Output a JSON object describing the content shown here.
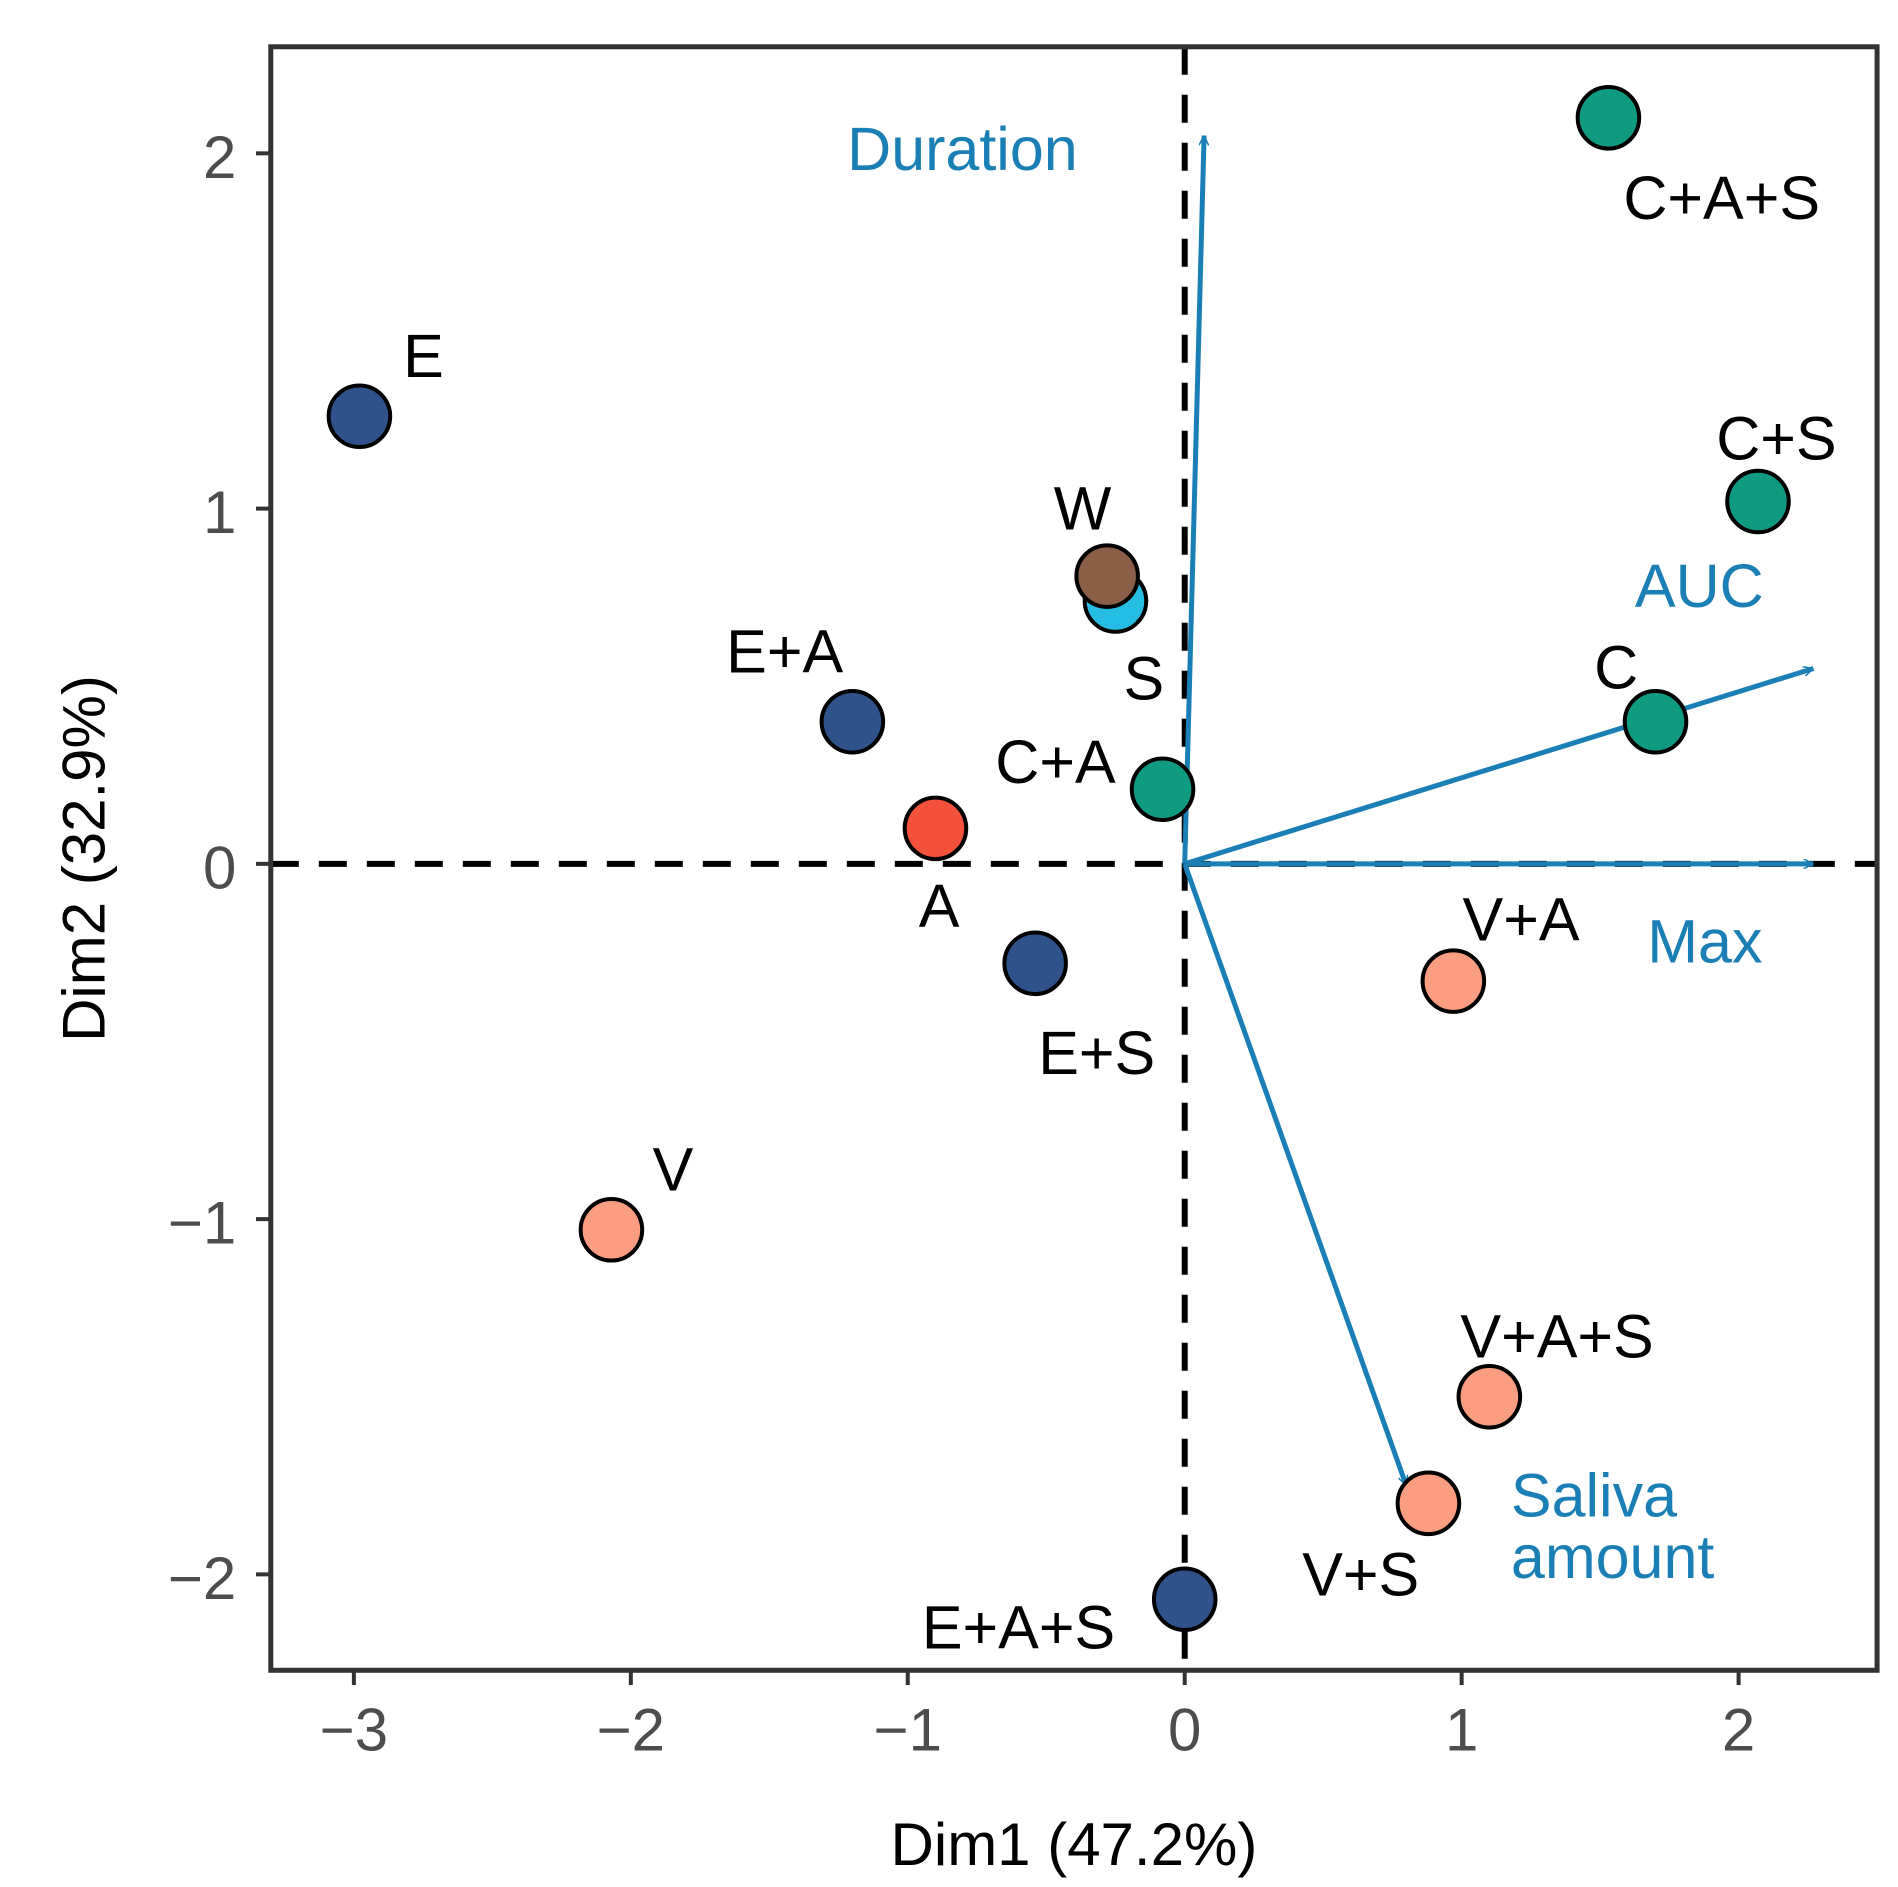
{
  "chart_data": {
    "type": "scatter",
    "subtype": "PCA biplot",
    "title": "",
    "xlabel": "Dim1 (47.2%)",
    "ylabel": "Dim2 (32.9%)",
    "xlim": [
      -3.3,
      2.5
    ],
    "ylim": [
      -2.27,
      2.3
    ],
    "xticks": [
      -3,
      -2,
      -1,
      0,
      1,
      2
    ],
    "yticks": [
      -2,
      -1,
      0,
      1,
      2
    ],
    "xtick_labels": [
      "−3",
      "−2",
      "−1",
      "0",
      "1",
      "2"
    ],
    "ytick_labels": [
      "−2",
      "−1",
      "0",
      "1",
      "2"
    ],
    "grid": false,
    "reference_lines": {
      "x": 0,
      "y": 0,
      "style": "dashed"
    },
    "points": [
      {
        "label": "E",
        "x": -2.98,
        "y": 1.26,
        "color": "#2e5289"
      },
      {
        "label": "E+A",
        "x": -1.2,
        "y": 0.4,
        "color": "#2e5289"
      },
      {
        "label": "E+S",
        "x": -0.54,
        "y": -0.28,
        "color": "#2e5289"
      },
      {
        "label": "E+A+S",
        "x": 0.0,
        "y": -2.07,
        "color": "#2e5289"
      },
      {
        "label": "A",
        "x": -0.9,
        "y": 0.1,
        "color": "#f4513a"
      },
      {
        "label": "S",
        "x": -0.25,
        "y": 0.74,
        "color": "#26bde4"
      },
      {
        "label": "W",
        "x": -0.28,
        "y": 0.81,
        "color": "#8a5e47"
      },
      {
        "label": "C+A",
        "x": -0.08,
        "y": 0.21,
        "color": "#0f9b82"
      },
      {
        "label": "C",
        "x": 1.7,
        "y": 0.4,
        "color": "#0f9b82"
      },
      {
        "label": "C+S",
        "x": 2.07,
        "y": 1.02,
        "color": "#0f9b82"
      },
      {
        "label": "C+A+S",
        "x": 1.53,
        "y": 2.1,
        "color": "#0f9b82"
      },
      {
        "label": "V",
        "x": -2.07,
        "y": -1.03,
        "color": "#fb9d80"
      },
      {
        "label": "V+A",
        "x": 0.97,
        "y": -0.33,
        "color": "#fb9d80"
      },
      {
        "label": "V+A+S",
        "x": 1.1,
        "y": -1.5,
        "color": "#fb9d80"
      },
      {
        "label": "V+S",
        "x": 0.88,
        "y": -1.8,
        "color": "#fb9d80"
      }
    ],
    "vectors": [
      {
        "label": "Duration",
        "x": 0.07,
        "y": 2.05
      },
      {
        "label": "AUC",
        "x": 2.27,
        "y": 0.55
      },
      {
        "label": "Max",
        "x": 2.27,
        "y": 0.0
      },
      {
        "label": "Saliva amount",
        "label_lines": [
          "Saliva",
          "amount"
        ],
        "x": 0.8,
        "y": -1.75
      }
    ],
    "vector_color": "#1a7fb5"
  }
}
